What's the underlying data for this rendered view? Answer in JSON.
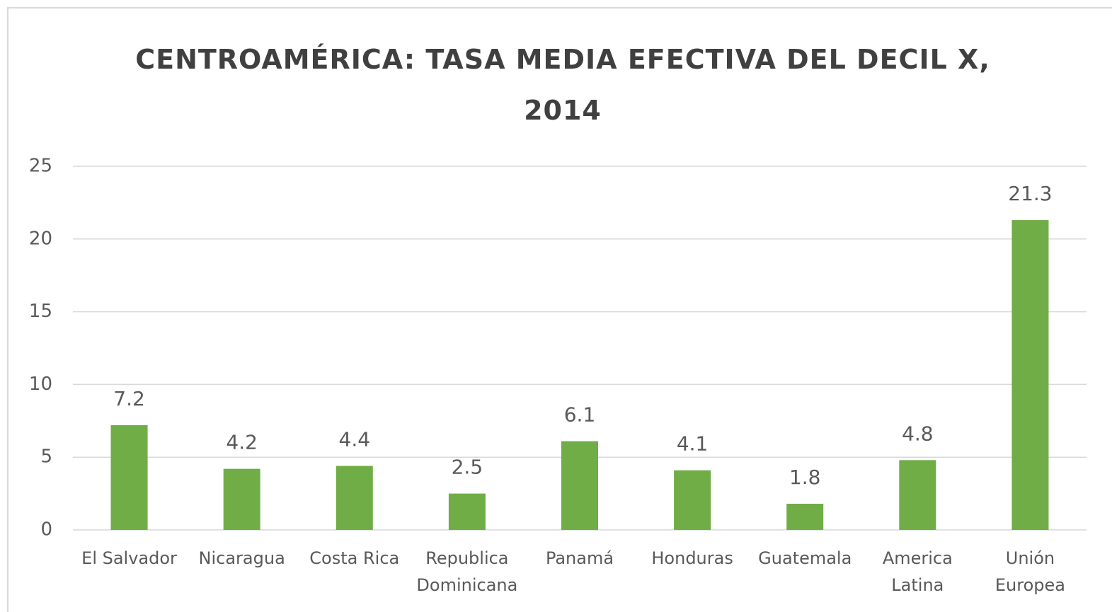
{
  "chart_data": {
    "type": "bar",
    "title": "CENTROAMÉRICA: TASA MEDIA EFECTIVA DEL DECIL X, 2014",
    "categories": [
      "El Salvador",
      "Nicaragua",
      "Costa Rica",
      "Republica Dominicana",
      "Panamá",
      "Honduras",
      "Guatemala",
      "America Latina",
      "Unión Europea"
    ],
    "values": [
      7.2,
      4.2,
      4.4,
      2.5,
      6.1,
      4.1,
      1.8,
      4.8,
      21.3
    ],
    "color": "#70ad47",
    "ylim": [
      0,
      25
    ],
    "yticks": [
      0,
      5,
      10,
      15,
      20,
      25
    ],
    "grid": true
  }
}
